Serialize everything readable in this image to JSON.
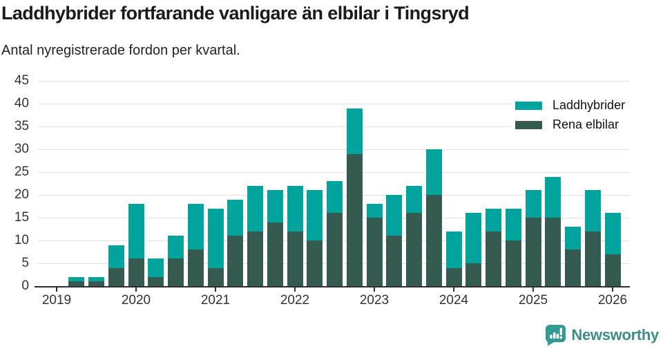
{
  "header": {
    "title": "Laddhybrider fortfarande vanligare än elbilar i Tingsryd",
    "subtitle": "Antal nyregistrerade fordon per kvartal."
  },
  "chart_data": {
    "type": "bar",
    "stacked": true,
    "title": "Laddhybrider fortfarande vanligare än elbilar i Tingsryd",
    "subtitle": "Antal nyregistrerade fordon per kvartal.",
    "xlabel": "",
    "ylabel": "",
    "ylim": [
      0,
      45
    ],
    "y_ticks": [
      0,
      5,
      10,
      15,
      20,
      25,
      30,
      35,
      40,
      45
    ],
    "grid": true,
    "legend_position": "top-right",
    "stack_order_bottom_to_top": [
      "Rena elbilar",
      "Laddhybrider"
    ],
    "categories": [
      "2019 Q1",
      "2019 Q2",
      "2019 Q3",
      "2019 Q4",
      "2020 Q1",
      "2020 Q2",
      "2020 Q3",
      "2020 Q4",
      "2021 Q1",
      "2021 Q2",
      "2021 Q3",
      "2021 Q4",
      "2022 Q1",
      "2022 Q2",
      "2022 Q3",
      "2022 Q4",
      "2023 Q1",
      "2023 Q2",
      "2023 Q3",
      "2023 Q4",
      "2024 Q1",
      "2024 Q2",
      "2024 Q3",
      "2024 Q4",
      "2025 Q1",
      "2025 Q2",
      "2025 Q3",
      "2025 Q4",
      "2026 Q1"
    ],
    "x_tick_labels": [
      "2019",
      "2020",
      "2021",
      "2022",
      "2023",
      "2024",
      "2025",
      "2026"
    ],
    "series": [
      {
        "name": "Laddhybrider",
        "color": "#00a49d",
        "values": [
          0,
          1,
          1,
          5,
          12,
          4,
          5,
          10,
          13,
          8,
          10,
          7,
          10,
          11,
          7,
          10,
          3,
          9,
          6,
          10,
          8,
          11,
          5,
          7,
          6,
          9,
          5,
          9,
          9
        ]
      },
      {
        "name": "Rena elbilar",
        "color": "#355b51",
        "values": [
          0,
          1,
          1,
          4,
          6,
          2,
          6,
          8,
          4,
          11,
          12,
          14,
          12,
          10,
          16,
          29,
          15,
          11,
          16,
          20,
          4,
          5,
          12,
          10,
          15,
          15,
          8,
          12,
          7
        ]
      }
    ],
    "totals": [
      0,
      2,
      2,
      9,
      18,
      6,
      11,
      18,
      17,
      19,
      22,
      21,
      22,
      21,
      23,
      39,
      18,
      20,
      22,
      30,
      12,
      16,
      17,
      17,
      21,
      24,
      13,
      21,
      16
    ]
  },
  "legend": {
    "items": [
      {
        "label": "Laddhybrider",
        "color": "#00a49d"
      },
      {
        "label": "Rena elbilar",
        "color": "#355b51"
      }
    ]
  },
  "footer": {
    "brand": "Newsworthy"
  },
  "style_colors": {
    "axis": "#2e2e2e",
    "gridline": "#e0e0e0",
    "tick_label": "#333333",
    "logo_icon": "#359a92",
    "logo_text": "#418d8b"
  }
}
